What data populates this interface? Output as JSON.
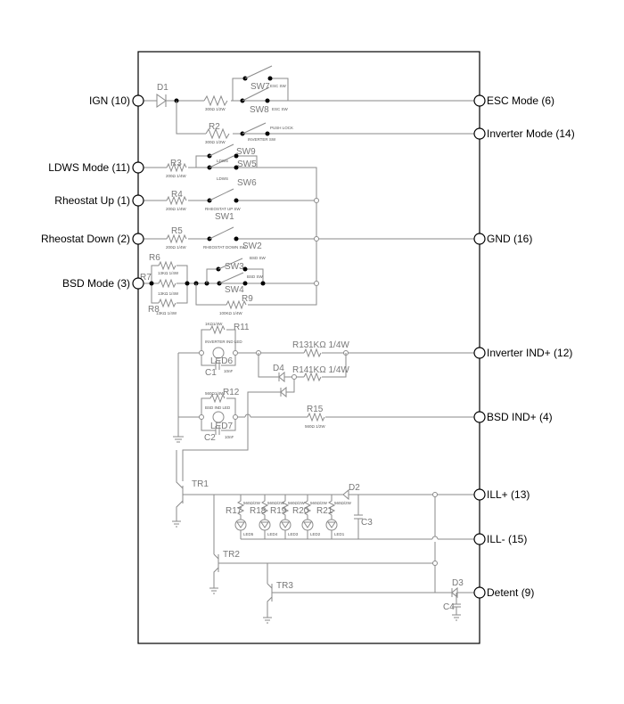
{
  "left_terminals": [
    "IGN (10)",
    "LDWS Mode (11)",
    "Rheostat Up (1)",
    "Rheostat Down (2)",
    "BSD Mode (3)"
  ],
  "right_terminals": [
    "ESC Mode (6)",
    "Inverter Mode (14)",
    "GND (16)",
    "Inverter IND+ (12)",
    "BSD IND+ (4)",
    "ILL+ (13)",
    "ILL- (15)",
    "Detent (9)"
  ],
  "components": {
    "D1": "D1",
    "R2": "R2",
    "R3": "R3",
    "R4": "R4",
    "R5": "R5",
    "R6": "R6",
    "R7": "R7",
    "R8": "R8",
    "R9": "R9",
    "SW1": "SW1",
    "SW2": "SW2",
    "SW3": "SW3",
    "SW4": "SW4",
    "SW5": "SW5",
    "SW6": "SW6",
    "SW7": "SW7",
    "SW8": "SW8",
    "SW9": "SW9",
    "R11": "R11",
    "R12": "R12",
    "R13": "R13",
    "R14": "R14",
    "R15": "R15",
    "LED6": "LED6",
    "LED7": "LED7",
    "C1": "C1",
    "C2": "C2",
    "C3": "C3",
    "C4": "C4",
    "D2": "D2",
    "D3": "D3",
    "D4": "D4",
    "TR1": "TR1",
    "TR2": "TR2",
    "TR3": "TR3",
    "R17": "R17",
    "R18": "R18",
    "R19": "R19",
    "R20": "R20",
    "R21": "R21"
  },
  "values": {
    "r_ign": "300Ω 1/2W",
    "r2": "300Ω 1/2W",
    "r3": "200Ω 1/4W",
    "r4": "200Ω 1/4W",
    "r5": "200Ω 1/4W",
    "r6": "13KΩ 1/4W",
    "r7": "13KΩ 1/4W",
    "r8": "13KΩ 1/4W",
    "r9": "100KΩ 1/4W",
    "r11": "1KΩ1/4W",
    "r12": "560Ω1/4W",
    "r13": "1KΩ 1/4W",
    "r14": "1KΩ 1/4W",
    "r15": "560Ω 1/2W",
    "c1": "10nF",
    "c2": "10nF",
    "r_led": "560Ω/2W"
  },
  "small_labels": {
    "esc_sw_7": "ESC SW",
    "esc_sw_8": "ESC SW",
    "push_lock": "PUSH LOCK",
    "inverter_sw": "INVERTER SW",
    "ldws_9": "LDWS",
    "ldws_6": "LDWS",
    "rheo_up": "RHEOSTAT UP SW",
    "rheo_down": "RHEOSTAT DOWN SW",
    "bsd_sw_3": "BSD SW",
    "bsd_sw_4": "BSD SW",
    "inv_led": "INVERTER IND LED",
    "bsd_led": "BSD IND LED"
  },
  "led_array": [
    "LED5",
    "LED4",
    "LED3",
    "LED2",
    "LED1"
  ]
}
